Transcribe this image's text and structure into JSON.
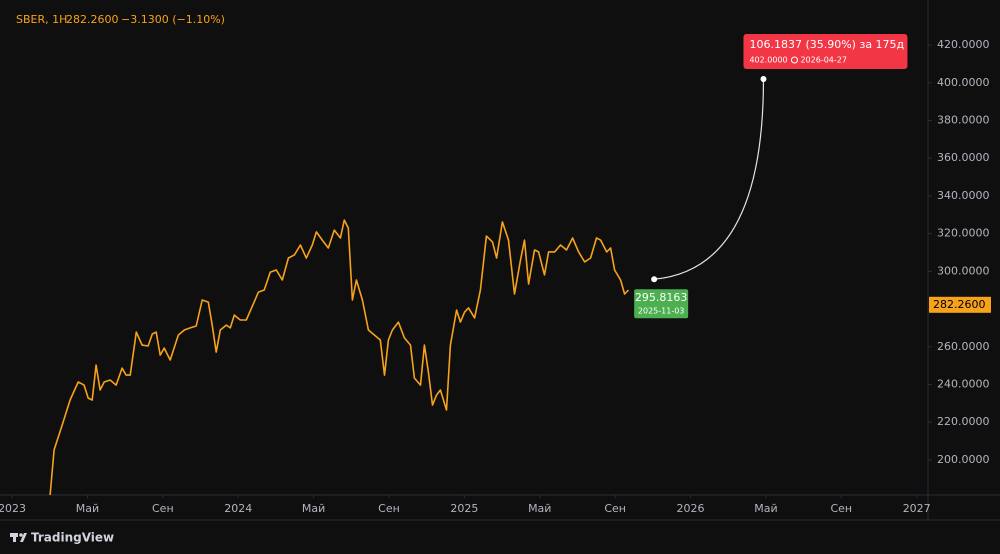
{
  "chart_data": {
    "type": "line",
    "header": {
      "symbol": "SBER, 1H",
      "price": "282.2600",
      "change": "−3.1300 (−1.10%)"
    },
    "color": "#f7a21b",
    "x": [
      2.02,
      2.23,
      2.66,
      3.08,
      3.51,
      3.82,
      4.04,
      4.25,
      4.46,
      4.67,
      4.89,
      5.2,
      5.52,
      5.84,
      6.05,
      6.27,
      6.59,
      6.9,
      7.22,
      7.44,
      7.65,
      7.86,
      8.07,
      8.39,
      8.82,
      9.14,
      9.45,
      9.77,
      10.09,
      10.41,
      10.62,
      10.83,
      11.05,
      11.37,
      11.58,
      11.79,
      12.11,
      12.43,
      12.75,
      13.07,
      13.38,
      13.7,
      14.02,
      14.34,
      14.66,
      14.98,
      15.3,
      15.61,
      15.93,
      16.15,
      16.46,
      16.78,
      17.1,
      17.42,
      17.63,
      17.84,
      18.06,
      18.27,
      18.59,
      18.91,
      19.23,
      19.54,
      19.76,
      19.97,
      20.18,
      20.5,
      20.82,
      21.14,
      21.35,
      21.67,
      21.88,
      22.09,
      22.31,
      22.52,
      22.73,
      23.05,
      23.26,
      23.59,
      23.79,
      24.01,
      24.22,
      24.54,
      24.85,
      25.17,
      25.49,
      25.71,
      26.02,
      26.34,
      26.66,
      26.98,
      27.19,
      27.41,
      27.72,
      27.94,
      28.25,
      28.47,
      28.79,
      29.1,
      29.42,
      29.74,
      30.06,
      30.38,
      30.7,
      31.01,
      31.23,
      31.55,
      31.76,
      31.97,
      32.29,
      32.5,
      32.71
    ],
    "values": [
      181.4,
      205.3,
      218.5,
      231.8,
      241.3,
      239.7,
      232.8,
      231.8,
      250.3,
      237.1,
      241.3,
      242.4,
      239.7,
      248.7,
      245,
      245,
      267.8,
      260.9,
      260.4,
      266.8,
      267.8,
      255.6,
      259.3,
      253,
      266.2,
      268.9,
      270,
      271,
      284.8,
      283.7,
      271.5,
      257.2,
      268.9,
      271.5,
      270,
      276.8,
      274.2,
      274.2,
      281.6,
      289,
      290.1,
      299.6,
      300.7,
      295.4,
      307.1,
      308.7,
      314,
      307.1,
      314,
      320.9,
      316.6,
      312.4,
      321.9,
      317.7,
      327.2,
      323,
      284.8,
      295.4,
      284.8,
      268.9,
      266.2,
      263.6,
      245,
      263.6,
      268.9,
      273.1,
      264.7,
      260.9,
      243.4,
      239.7,
      260.9,
      246.6,
      229.1,
      234.4,
      237.1,
      226.5,
      260.9,
      279.5,
      273.1,
      278.4,
      280.6,
      275.3,
      290.1,
      318.7,
      315.6,
      307.1,
      326.2,
      316.6,
      288,
      306,
      316.6,
      293.3,
      311.3,
      310.3,
      298.1,
      310.3,
      310.3,
      314,
      311.3,
      317.7,
      310.3,
      305,
      307.1,
      317.7,
      316.6,
      310.3,
      312.4,
      300.7,
      295.4,
      288,
      290.1
    ],
    "xlim": [
      -0.64,
      48.6
    ],
    "xticks": [
      {
        "value": 0,
        "label": "2023"
      },
      {
        "value": 4,
        "label": "Май"
      },
      {
        "value": 8,
        "label": "Сен"
      },
      {
        "value": 12,
        "label": "2024"
      },
      {
        "value": 16,
        "label": "Май"
      },
      {
        "value": 20,
        "label": "Сен"
      },
      {
        "value": 24,
        "label": "2025"
      },
      {
        "value": 28,
        "label": "Май"
      },
      {
        "value": 32,
        "label": "Сен"
      },
      {
        "value": 36,
        "label": "2026"
      },
      {
        "value": 40,
        "label": "Май"
      },
      {
        "value": 44,
        "label": "Сен"
      },
      {
        "value": 48,
        "label": "2027"
      }
    ],
    "ylim": [
      181.4,
      443.9
    ],
    "yticks": [
      {
        "value": 200,
        "label": "200.0000"
      },
      {
        "value": 220,
        "label": "220.0000"
      },
      {
        "value": 240,
        "label": "240.0000"
      },
      {
        "value": 260,
        "label": "260.0000"
      },
      {
        "value": 280,
        "label": "280.0000"
      },
      {
        "value": 300,
        "label": "300.0000"
      },
      {
        "value": 320,
        "label": "320.0000"
      },
      {
        "value": 340,
        "label": "340.0000"
      },
      {
        "value": 360,
        "label": "360.0000"
      },
      {
        "value": 380,
        "label": "380.0000"
      },
      {
        "value": 400,
        "label": "400.0000"
      },
      {
        "value": 420,
        "label": "420.0000"
      }
    ],
    "last_price": {
      "value": 282.26,
      "label": "282.2600"
    },
    "projection": {
      "start": {
        "x": 34.07,
        "value": 295.8163,
        "label": "295.8163",
        "date": "2025-11-03"
      },
      "end": {
        "x": 39.87,
        "value": 402,
        "label": "402.0000",
        "date": "2026-04-27"
      },
      "text": "106.1837 (35.90%) за 175д"
    },
    "brand": "TradingView"
  }
}
